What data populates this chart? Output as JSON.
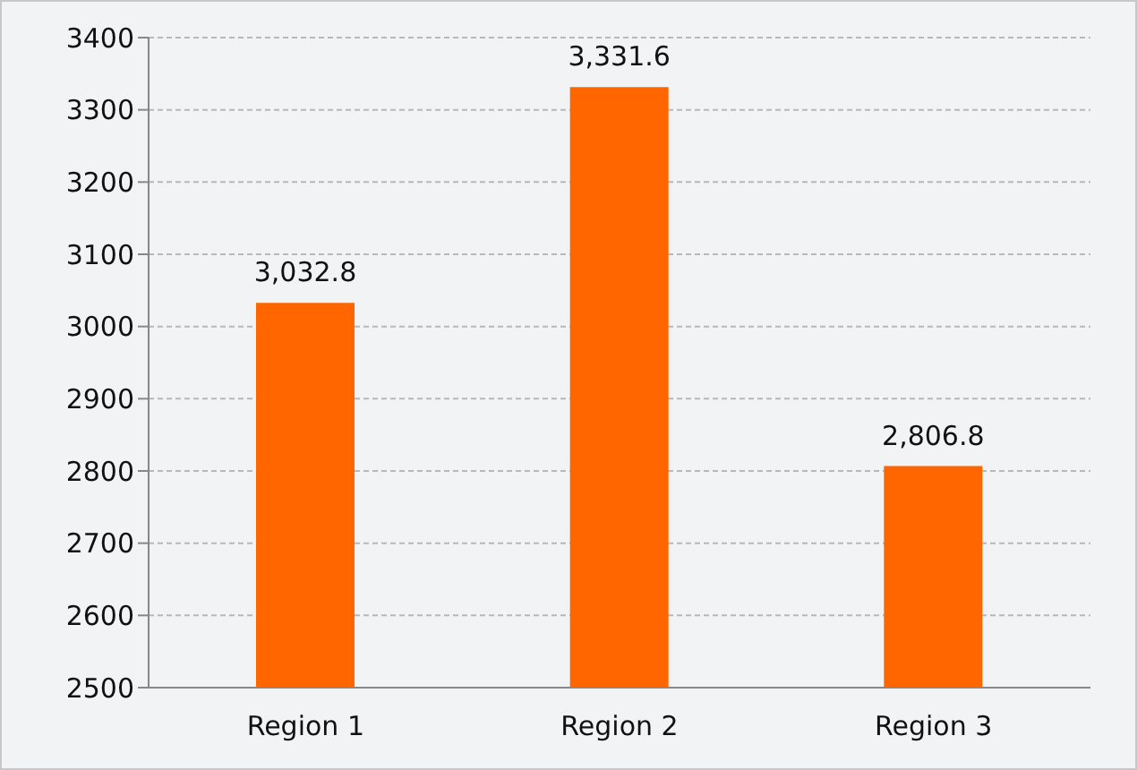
{
  "chart_data": {
    "type": "bar",
    "categories": [
      "Region 1",
      "Region 2",
      "Region 3"
    ],
    "values": [
      3032.8,
      3331.6,
      2806.8
    ],
    "color": "#ff6600",
    "ylim": [
      2500,
      3400
    ],
    "yticks": [
      2500,
      2600,
      2700,
      2800,
      2900,
      3000,
      3100,
      3200,
      3300,
      3400
    ],
    "grid": "y",
    "value_labels": [
      "3,032.8",
      "3,331.6",
      "2,806.8"
    ]
  }
}
